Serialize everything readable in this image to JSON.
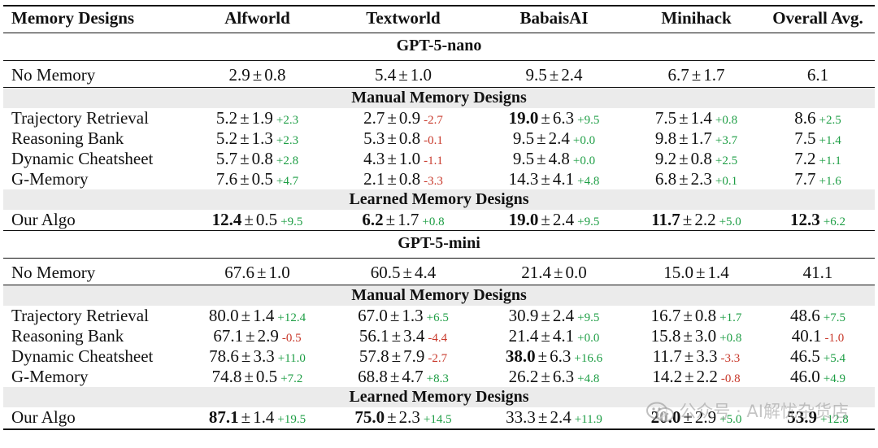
{
  "table": {
    "headers": [
      "Memory Designs",
      "Alfworld",
      "Textworld",
      "BabaisAI",
      "Minihack",
      "Overall Avg."
    ],
    "blocks": [
      {
        "model": "GPT-5-nano",
        "baseline": {
          "name": "No Memory",
          "cells": [
            {
              "v": "2.9",
              "sd": "0.8",
              "b": false,
              "d": "",
              "s": ""
            },
            {
              "v": "5.4",
              "sd": "1.0",
              "b": false,
              "d": "",
              "s": ""
            },
            {
              "v": "9.5",
              "sd": "2.4",
              "b": false,
              "d": "",
              "s": ""
            },
            {
              "v": "6.7",
              "sd": "1.7",
              "b": false,
              "d": "",
              "s": ""
            },
            {
              "v": "6.1",
              "sd": "",
              "b": false,
              "d": "",
              "s": ""
            }
          ]
        },
        "manual_label": "Manual Memory Designs",
        "manual": [
          {
            "name": "Trajectory Retrieval",
            "cells": [
              {
                "v": "5.2",
                "sd": "1.9",
                "b": false,
                "d": "+2.3",
                "s": "pos"
              },
              {
                "v": "2.7",
                "sd": "0.9",
                "b": false,
                "d": "-2.7",
                "s": "neg"
              },
              {
                "v": "19.0",
                "sd": "6.3",
                "b": true,
                "d": "+9.5",
                "s": "pos"
              },
              {
                "v": "7.5",
                "sd": "1.4",
                "b": false,
                "d": "+0.8",
                "s": "pos"
              },
              {
                "v": "8.6",
                "sd": "",
                "b": false,
                "d": "+2.5",
                "s": "pos"
              }
            ]
          },
          {
            "name": "Reasoning Bank",
            "cells": [
              {
                "v": "5.2",
                "sd": "1.3",
                "b": false,
                "d": "+2.3",
                "s": "pos"
              },
              {
                "v": "5.3",
                "sd": "0.8",
                "b": false,
                "d": "-0.1",
                "s": "neg"
              },
              {
                "v": "9.5",
                "sd": "2.4",
                "b": false,
                "d": "+0.0",
                "s": "pos"
              },
              {
                "v": "9.8",
                "sd": "1.7",
                "b": false,
                "d": "+3.7",
                "s": "pos"
              },
              {
                "v": "7.5",
                "sd": "",
                "b": false,
                "d": "+1.4",
                "s": "pos"
              }
            ]
          },
          {
            "name": "Dynamic Cheatsheet",
            "cells": [
              {
                "v": "5.7",
                "sd": "0.8",
                "b": false,
                "d": "+2.8",
                "s": "pos"
              },
              {
                "v": "4.3",
                "sd": "1.0",
                "b": false,
                "d": "-1.1",
                "s": "neg"
              },
              {
                "v": "9.5",
                "sd": "4.8",
                "b": false,
                "d": "+0.0",
                "s": "pos"
              },
              {
                "v": "9.2",
                "sd": "0.8",
                "b": false,
                "d": "+2.5",
                "s": "pos"
              },
              {
                "v": "7.2",
                "sd": "",
                "b": false,
                "d": "+1.1",
                "s": "pos"
              }
            ]
          },
          {
            "name": "G-Memory",
            "cells": [
              {
                "v": "7.6",
                "sd": "0.5",
                "b": false,
                "d": "+4.7",
                "s": "pos"
              },
              {
                "v": "2.1",
                "sd": "0.8",
                "b": false,
                "d": "-3.3",
                "s": "neg"
              },
              {
                "v": "14.3",
                "sd": "4.1",
                "b": false,
                "d": "+4.8",
                "s": "pos"
              },
              {
                "v": "6.8",
                "sd": "2.3",
                "b": false,
                "d": "+0.1",
                "s": "pos"
              },
              {
                "v": "7.7",
                "sd": "",
                "b": false,
                "d": "+1.6",
                "s": "pos"
              }
            ]
          }
        ],
        "learned_label": "Learned Memory Designs",
        "learned": [
          {
            "name": "Our Algo",
            "cells": [
              {
                "v": "12.4",
                "sd": "0.5",
                "b": true,
                "d": "+9.5",
                "s": "pos"
              },
              {
                "v": "6.2",
                "sd": "1.7",
                "b": true,
                "d": "+0.8",
                "s": "pos"
              },
              {
                "v": "19.0",
                "sd": "2.4",
                "b": true,
                "d": "+9.5",
                "s": "pos"
              },
              {
                "v": "11.7",
                "sd": "2.2",
                "b": true,
                "d": "+5.0",
                "s": "pos"
              },
              {
                "v": "12.3",
                "sd": "",
                "b": true,
                "d": "+6.2",
                "s": "pos"
              }
            ]
          }
        ]
      },
      {
        "model": "GPT-5-mini",
        "baseline": {
          "name": "No Memory",
          "cells": [
            {
              "v": "67.6",
              "sd": "1.0",
              "b": false,
              "d": "",
              "s": ""
            },
            {
              "v": "60.5",
              "sd": "4.4",
              "b": false,
              "d": "",
              "s": ""
            },
            {
              "v": "21.4",
              "sd": "0.0",
              "b": false,
              "d": "",
              "s": ""
            },
            {
              "v": "15.0",
              "sd": "1.4",
              "b": false,
              "d": "",
              "s": ""
            },
            {
              "v": "41.1",
              "sd": "",
              "b": false,
              "d": "",
              "s": ""
            }
          ]
        },
        "manual_label": "Manual Memory Designs",
        "manual": [
          {
            "name": "Trajectory Retrieval",
            "cells": [
              {
                "v": "80.0",
                "sd": "1.4",
                "b": false,
                "d": "+12.4",
                "s": "pos"
              },
              {
                "v": "67.0",
                "sd": "1.3",
                "b": false,
                "d": "+6.5",
                "s": "pos"
              },
              {
                "v": "30.9",
                "sd": "2.4",
                "b": false,
                "d": "+9.5",
                "s": "pos"
              },
              {
                "v": "16.7",
                "sd": "0.8",
                "b": false,
                "d": "+1.7",
                "s": "pos"
              },
              {
                "v": "48.6",
                "sd": "",
                "b": false,
                "d": "+7.5",
                "s": "pos"
              }
            ]
          },
          {
            "name": "Reasoning Bank",
            "cells": [
              {
                "v": "67.1",
                "sd": "2.9",
                "b": false,
                "d": "-0.5",
                "s": "neg"
              },
              {
                "v": "56.1",
                "sd": "3.4",
                "b": false,
                "d": "-4.4",
                "s": "neg"
              },
              {
                "v": "21.4",
                "sd": "4.1",
                "b": false,
                "d": "+0.0",
                "s": "pos"
              },
              {
                "v": "15.8",
                "sd": "3.0",
                "b": false,
                "d": "+0.8",
                "s": "pos"
              },
              {
                "v": "40.1",
                "sd": "",
                "b": false,
                "d": "-1.0",
                "s": "neg"
              }
            ]
          },
          {
            "name": "Dynamic Cheatsheet",
            "cells": [
              {
                "v": "78.6",
                "sd": "3.3",
                "b": false,
                "d": "+11.0",
                "s": "pos"
              },
              {
                "v": "57.8",
                "sd": "7.9",
                "b": false,
                "d": "-2.7",
                "s": "neg"
              },
              {
                "v": "38.0",
                "sd": "6.3",
                "b": true,
                "d": "+16.6",
                "s": "pos"
              },
              {
                "v": "11.7",
                "sd": "3.3",
                "b": false,
                "d": "-3.3",
                "s": "neg"
              },
              {
                "v": "46.5",
                "sd": "",
                "b": false,
                "d": "+5.4",
                "s": "pos"
              }
            ]
          },
          {
            "name": "G-Memory",
            "cells": [
              {
                "v": "74.8",
                "sd": "0.5",
                "b": false,
                "d": "+7.2",
                "s": "pos"
              },
              {
                "v": "68.8",
                "sd": "4.7",
                "b": false,
                "d": "+8.3",
                "s": "pos"
              },
              {
                "v": "26.2",
                "sd": "6.3",
                "b": false,
                "d": "+4.8",
                "s": "pos"
              },
              {
                "v": "14.2",
                "sd": "2.2",
                "b": false,
                "d": "-0.8",
                "s": "neg"
              },
              {
                "v": "46.0",
                "sd": "",
                "b": false,
                "d": "+4.9",
                "s": "pos"
              }
            ]
          }
        ],
        "learned_label": "Learned Memory Designs",
        "learned": [
          {
            "name": "Our Algo",
            "cells": [
              {
                "v": "87.1",
                "sd": "1.4",
                "b": true,
                "d": "+19.5",
                "s": "pos"
              },
              {
                "v": "75.0",
                "sd": "2.3",
                "b": true,
                "d": "+14.5",
                "s": "pos"
              },
              {
                "v": "33.3",
                "sd": "2.4",
                "b": false,
                "d": "+11.9",
                "s": "pos"
              },
              {
                "v": "20.0",
                "sd": "2.9",
                "b": true,
                "d": "+5.0",
                "s": "pos"
              },
              {
                "v": "53.9",
                "sd": "",
                "b": true,
                "d": "+12.8",
                "s": "pos"
              }
            ]
          }
        ]
      }
    ]
  },
  "pm_symbol": "±",
  "watermark": "公众号 · AI解忧杂货店",
  "colors": {
    "positive": "#1e9e45",
    "negative": "#c8392b",
    "shade": "#ebebeb"
  }
}
